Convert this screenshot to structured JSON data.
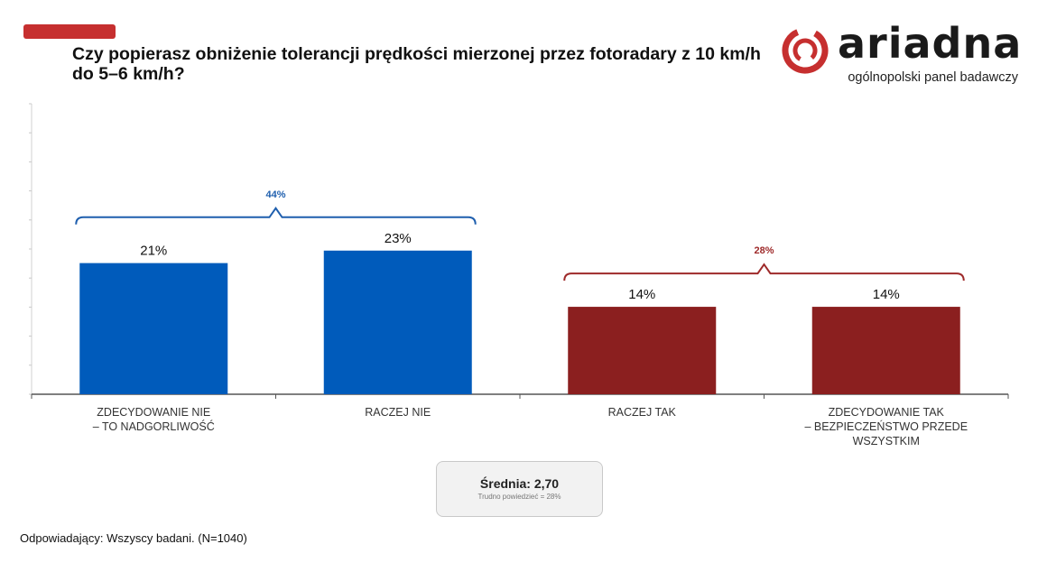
{
  "title": "Czy popierasz obniżenie tolerancji prędkości mierzonej przez fotoradary z 10 km/h do 5–6 km/h?",
  "logo": {
    "name": "ariadna",
    "tagline": "ogólnopolski panel badawczy"
  },
  "colors": {
    "accent": "#c62f2f",
    "blue": "#005bbb",
    "red": "#8b1f1f",
    "brace_blue": "#1f5fae",
    "brace_red": "#9e2a2a"
  },
  "chart_data": {
    "type": "bar",
    "categories": [
      [
        "ZDECYDOWANIE NIE",
        "– TO NADGORLIWOŚĆ"
      ],
      [
        "RACZEJ NIE"
      ],
      [
        "RACZEJ TAK"
      ],
      [
        "ZDECYDOWANIE TAK",
        "– BEZPIECZEŃSTWO PRZEDE",
        "WSZYSTKIM"
      ]
    ],
    "values": [
      21,
      23,
      14,
      14
    ],
    "value_labels": [
      "21%",
      "23%",
      "14%",
      "14%"
    ],
    "bar_colors": [
      "#005bbb",
      "#005bbb",
      "#8b1f1f",
      "#8b1f1f"
    ],
    "ylim": [
      0,
      100
    ],
    "groups": [
      {
        "label": "44%",
        "categories": [
          0,
          1
        ],
        "color": "#1f5fae"
      },
      {
        "label": "28%",
        "categories": [
          2,
          3
        ],
        "color": "#9e2a2a"
      }
    ]
  },
  "summary": {
    "mean": "Średnia: 2,70",
    "note": "Trudno powiedzieć = 28%"
  },
  "footnote": "Odpowiadający: Wszyscy badani. (N=1040)"
}
